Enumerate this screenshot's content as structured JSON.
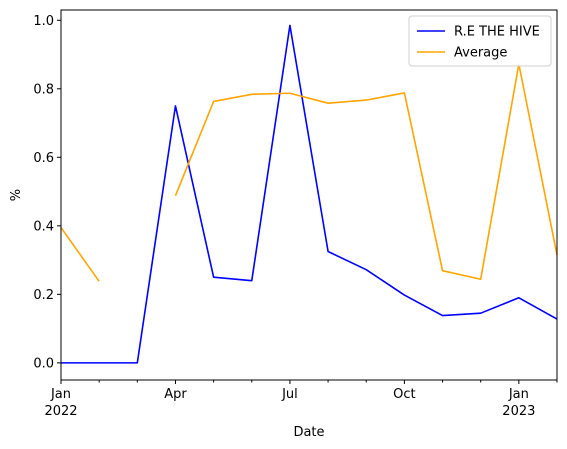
{
  "chart_data": {
    "type": "line",
    "title": "",
    "xlabel": "Date",
    "ylabel": "%",
    "x": [
      "2022-01",
      "2022-02",
      "2022-03",
      "2022-04",
      "2022-05",
      "2022-06",
      "2022-07",
      "2022-08",
      "2022-09",
      "2022-10",
      "2022-11",
      "2022-12",
      "2023-01",
      "2023-02"
    ],
    "xlim": [
      "2022-01",
      "2023-02"
    ],
    "ylim": [
      -0.05,
      1.03
    ],
    "yticks": [
      "0.0",
      "0.2",
      "0.4",
      "0.6",
      "0.8",
      "1.0"
    ],
    "xticks_major": [
      {
        "x": "2022-01",
        "label": "Jan",
        "year": "2022"
      },
      {
        "x": "2022-04",
        "label": "Apr",
        "year": ""
      },
      {
        "x": "2022-07",
        "label": "Jul",
        "year": ""
      },
      {
        "x": "2022-10",
        "label": "Oct",
        "year": ""
      },
      {
        "x": "2023-01",
        "label": "Jan",
        "year": "2023"
      }
    ],
    "grid": false,
    "legend_position": "top-right",
    "series": [
      {
        "name": "R.E THE HIVE",
        "color": "#0000ff",
        "values": [
          0.0,
          0.0,
          0.0,
          0.75,
          0.25,
          0.24,
          0.985,
          0.325,
          0.272,
          0.198,
          0.138,
          0.145,
          0.19,
          0.128
        ]
      },
      {
        "name": "Average",
        "color": "#ffa500",
        "values": [
          0.395,
          0.238,
          null,
          0.488,
          0.763,
          0.784,
          0.787,
          0.758,
          0.767,
          0.788,
          0.269,
          0.244,
          0.872,
          0.315
        ]
      }
    ]
  }
}
